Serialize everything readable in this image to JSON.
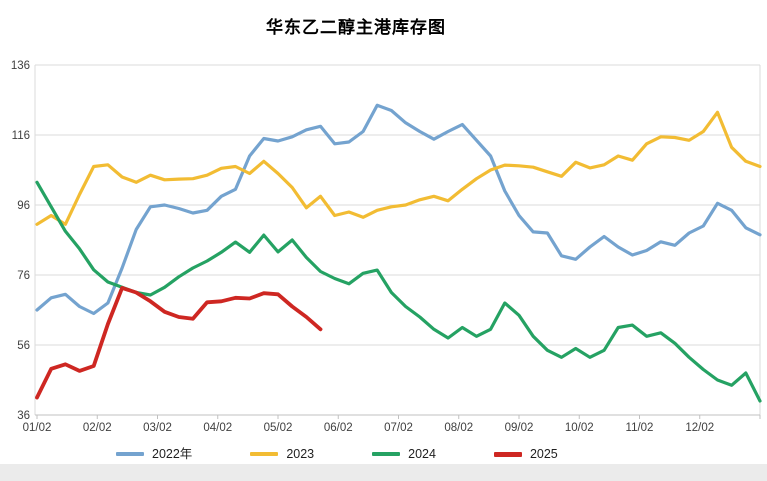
{
  "title": "华东乙二醇主港库存图",
  "colors": {
    "grid": "#DBDBDB",
    "axis": "#C0C0C0",
    "tick_label": "#404040",
    "footer_strip": "#EBEBEB",
    "title_text": "#000000"
  },
  "legend": {
    "position": "bottom",
    "items": [
      "2022年",
      "2023",
      "2024",
      "2025"
    ]
  },
  "chart_data": {
    "type": "line",
    "title": "华东乙二醇主港库存图",
    "xlabel": "",
    "ylabel": "",
    "x_tick_labels": [
      "01/02",
      "02/02",
      "03/02",
      "04/02",
      "05/02",
      "06/02",
      "07/02",
      "08/02",
      "09/02",
      "10/02",
      "11/02",
      "12/02"
    ],
    "y_ticks": [
      36,
      56,
      76,
      96,
      116,
      136
    ],
    "ylim": [
      36,
      136
    ],
    "points_per_year": 52,
    "grid": "horizontal",
    "legend_position": "bottom",
    "series": [
      {
        "name": "2022年",
        "color": "#74A3CF",
        "width": 3.2,
        "values": [
          66,
          69.5,
          70.5,
          67,
          65,
          68,
          78,
          89,
          95.5,
          96,
          95,
          93.7,
          94.5,
          98.5,
          100.5,
          110,
          115,
          114.3,
          115.5,
          117.5,
          118.5,
          113.5,
          114,
          117,
          124.5,
          123,
          119.5,
          117,
          114.8,
          117,
          119,
          114.5,
          110,
          100,
          93,
          88.3,
          88,
          81.5,
          80.5,
          84,
          87,
          84,
          81.7,
          83,
          85.5,
          84.5,
          88,
          90,
          96.5,
          94.5,
          89.5,
          87.5
        ]
      },
      {
        "name": "2023",
        "color": "#F2BC33",
        "width": 3.2,
        "values": [
          90.5,
          93,
          90.5,
          99,
          107,
          107.5,
          104,
          102.5,
          104.5,
          103.2,
          103.4,
          103.5,
          104.5,
          106.5,
          107,
          105,
          108.5,
          105,
          101,
          95.2,
          98.5,
          93,
          94,
          92.5,
          94.5,
          95.5,
          96,
          97.5,
          98.5,
          97.2,
          100.5,
          103.5,
          106,
          107.4,
          107.2,
          106.8,
          105.5,
          104.2,
          108.2,
          106.6,
          107.5,
          110,
          108.8,
          113.5,
          115.5,
          115.3,
          114.5,
          117,
          122.5,
          112.5,
          108.5,
          107
        ]
      },
      {
        "name": "2024",
        "color": "#25A263",
        "width": 3.2,
        "values": [
          102.5,
          95.5,
          88.5,
          83.5,
          77.5,
          74,
          72.5,
          71,
          70.3,
          72.5,
          75.5,
          78,
          80,
          82.5,
          85.4,
          82.5,
          87.4,
          82.6,
          86,
          81,
          77,
          75,
          73.5,
          76.5,
          77.4,
          71,
          67,
          64,
          60.5,
          58,
          61,
          58.5,
          60.5,
          68,
          64.5,
          58.5,
          54.5,
          52.5,
          55,
          52.5,
          54.5,
          61,
          61.7,
          58.5,
          59.5,
          56.5,
          52.5,
          49,
          46,
          44.5,
          48,
          40
        ]
      },
      {
        "name": "2025",
        "color": "#CE2722",
        "width": 3.8,
        "values": [
          41,
          49.2,
          50.5,
          48.6,
          50,
          62,
          72.3,
          71,
          68.5,
          65.5,
          64,
          63.5,
          68.2,
          68.5,
          69.5,
          69.3,
          70.8,
          70.5,
          67,
          64,
          60.5
        ]
      }
    ]
  }
}
